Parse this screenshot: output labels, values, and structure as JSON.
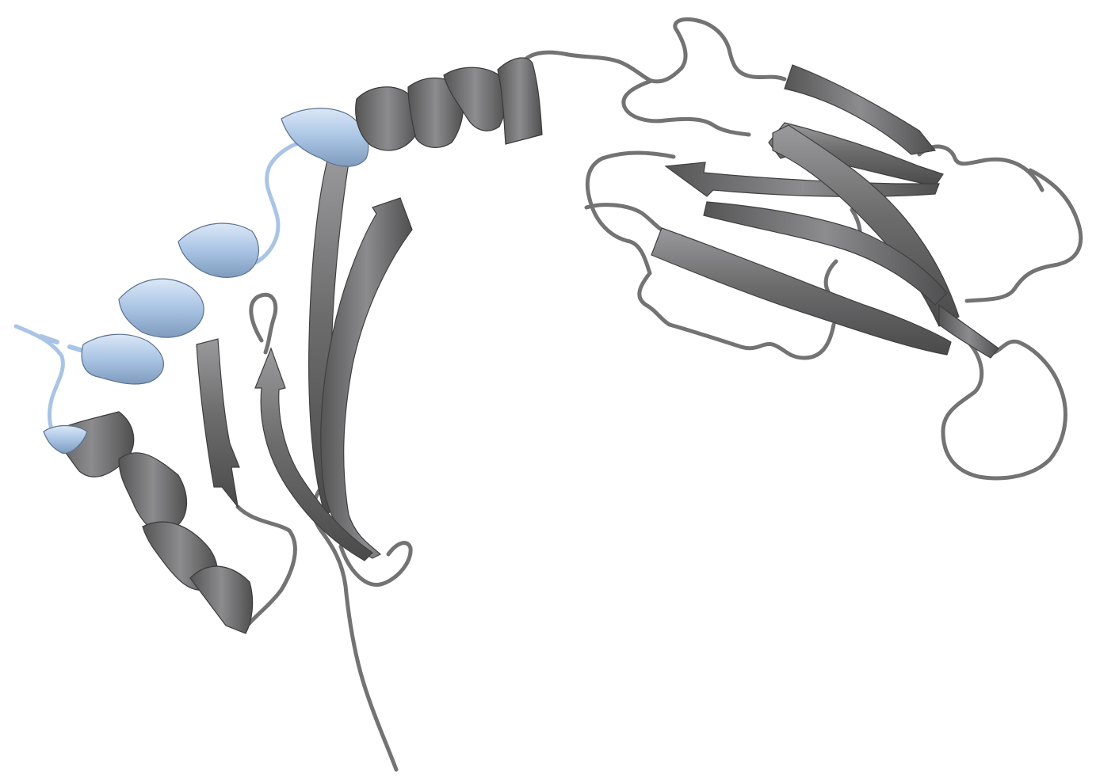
{
  "image": {
    "subject": "protein-cartoon",
    "background_color": "#ffffff"
  },
  "colors": {
    "main_chain": "#6f6f70",
    "main_chain_light": "#a6a6a8",
    "main_chain_dark": "#4a4a4b",
    "highlight_segment": "#a9c4e4",
    "highlight_segment_light": "#d8e6f6",
    "highlight_segment_dark": "#7f9bbd",
    "coil": "#737374"
  }
}
